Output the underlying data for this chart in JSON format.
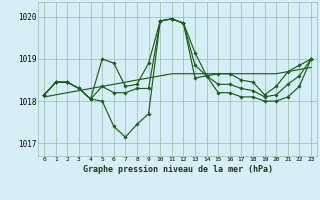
{
  "title": "Graphe pression niveau de la mer (hPa)",
  "background_color": "#d6eef5",
  "line_color": "#1a5e1a",
  "grid_color": "#99bbaa",
  "hours": [
    0,
    1,
    2,
    3,
    4,
    5,
    6,
    7,
    8,
    9,
    10,
    11,
    12,
    13,
    14,
    15,
    16,
    17,
    18,
    19,
    20,
    21,
    22,
    23
  ],
  "series_max": [
    1018.15,
    1018.45,
    1018.45,
    1018.3,
    1018.05,
    1019.0,
    1018.9,
    1018.35,
    1018.4,
    1018.9,
    1019.9,
    1019.95,
    1019.85,
    1019.15,
    1018.6,
    1018.65,
    1018.65,
    1018.5,
    1018.45,
    1018.15,
    1018.35,
    1018.7,
    1018.85,
    1019.0
  ],
  "series_min": [
    1018.15,
    1018.45,
    1018.45,
    1018.3,
    1018.05,
    1018.0,
    1017.4,
    1017.15,
    1017.45,
    1017.7,
    1019.9,
    1019.95,
    1019.85,
    1018.55,
    1018.6,
    1018.2,
    1018.2,
    1018.1,
    1018.1,
    1018.0,
    1018.0,
    1018.1,
    1018.35,
    1019.0
  ],
  "series_avg": [
    1018.15,
    1018.45,
    1018.45,
    1018.3,
    1018.05,
    1018.35,
    1018.2,
    1018.2,
    1018.3,
    1018.3,
    1019.9,
    1019.95,
    1019.85,
    1018.85,
    1018.6,
    1018.4,
    1018.4,
    1018.3,
    1018.25,
    1018.1,
    1018.15,
    1018.4,
    1018.6,
    1019.0
  ],
  "series_trend": [
    1018.1,
    1018.15,
    1018.2,
    1018.25,
    1018.3,
    1018.35,
    1018.4,
    1018.45,
    1018.5,
    1018.55,
    1018.6,
    1018.65,
    1018.65,
    1018.65,
    1018.65,
    1018.65,
    1018.65,
    1018.65,
    1018.65,
    1018.65,
    1018.65,
    1018.7,
    1018.75,
    1018.8
  ],
  "ylim_min": 1016.7,
  "ylim_max": 1020.35,
  "yticks": [
    1017.0,
    1018.0,
    1019.0,
    1020.0
  ]
}
